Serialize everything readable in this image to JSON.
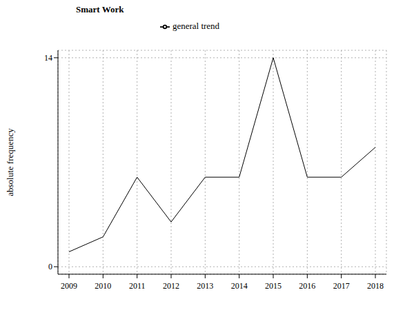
{
  "chart_data": {
    "type": "line",
    "title": "Smart Work",
    "ylabel": "absolute frequency",
    "categories": [
      "2009",
      "2010",
      "2011",
      "2012",
      "2013",
      "2014",
      "2015",
      "2016",
      "2017",
      "2018"
    ],
    "series": [
      {
        "name": "general trend",
        "color": "#000000",
        "values": [
          1,
          2,
          6,
          3,
          6,
          6,
          14,
          6,
          6,
          8
        ]
      }
    ],
    "ylim": [
      -0.5,
      14.5
    ],
    "yticks": [
      0,
      14
    ],
    "grid": true,
    "legend": "top"
  }
}
